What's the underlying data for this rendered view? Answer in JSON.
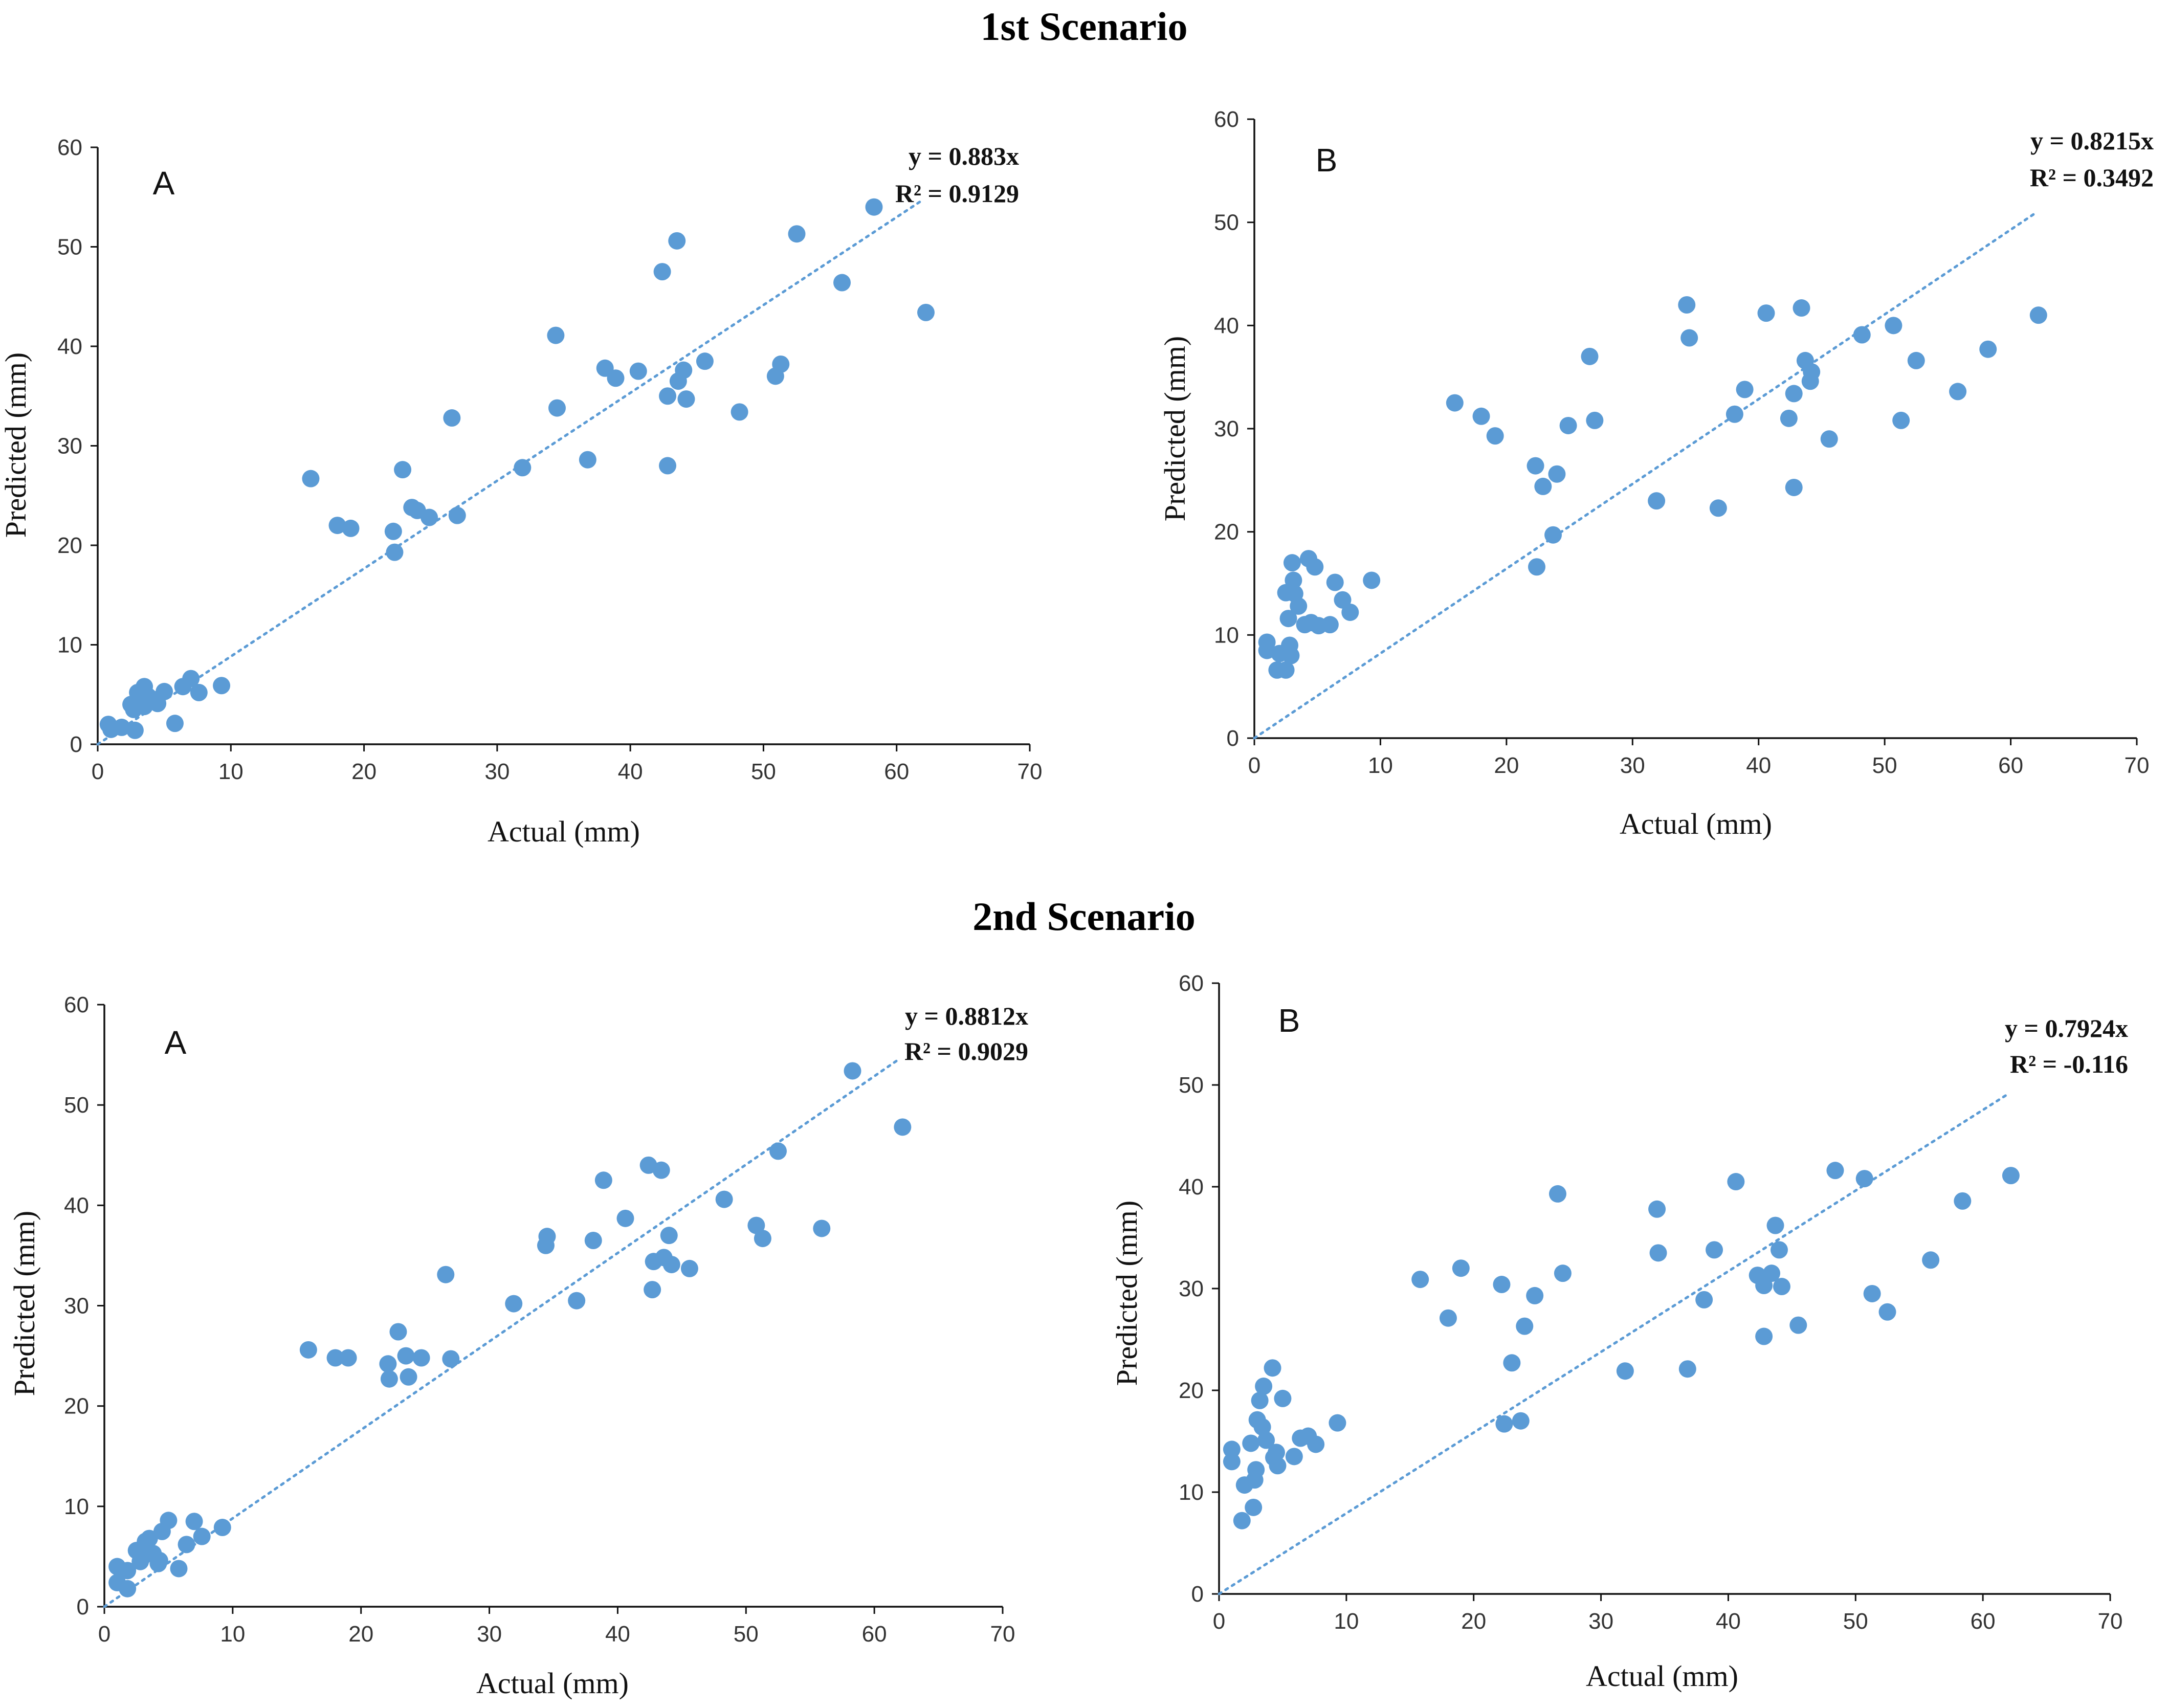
{
  "scenarios": [
    {
      "title": "1st Scenario"
    },
    {
      "title": "2nd Scenario"
    }
  ],
  "chart_data": [
    {
      "type": "scatter",
      "panel": "A",
      "scenario": "1st Scenario",
      "xlabel": "Actual (mm)",
      "ylabel": "Predicted (mm)",
      "xlim": [
        0,
        70
      ],
      "ylim": [
        0,
        60
      ],
      "xticks": [
        0,
        10,
        20,
        30,
        40,
        50,
        60,
        70
      ],
      "yticks": [
        0,
        10,
        20,
        30,
        40,
        50,
        60
      ],
      "trendline": {
        "equation": "y = 0.883x",
        "r2": "R² = 0.9129",
        "slope": 0.883,
        "x_end": 62
      },
      "color": "#5b9bd5",
      "points": [
        [
          0.8,
          2
        ],
        [
          1,
          1.5
        ],
        [
          1.8,
          1.7
        ],
        [
          2.8,
          1.4
        ],
        [
          2.5,
          4
        ],
        [
          2.7,
          3.5
        ],
        [
          3,
          5.2
        ],
        [
          3.2,
          4.3
        ],
        [
          3.5,
          5.8
        ],
        [
          3.8,
          4.8
        ],
        [
          3.5,
          3.8
        ],
        [
          4.2,
          4.5
        ],
        [
          4.5,
          4.1
        ],
        [
          5,
          5.3
        ],
        [
          5.8,
          2.1
        ],
        [
          6.4,
          5.8
        ],
        [
          7,
          6.6
        ],
        [
          7.6,
          5.2
        ],
        [
          9.3,
          5.9
        ],
        [
          16,
          26.7
        ],
        [
          18,
          22
        ],
        [
          19,
          21.7
        ],
        [
          22.2,
          21.4
        ],
        [
          22.3,
          19.3
        ],
        [
          22.9,
          27.6
        ],
        [
          23.6,
          23.8
        ],
        [
          24,
          23.5
        ],
        [
          24.9,
          22.8
        ],
        [
          26.6,
          32.8
        ],
        [
          27,
          23
        ],
        [
          31.9,
          27.8
        ],
        [
          34.4,
          41.1
        ],
        [
          34.5,
          33.8
        ],
        [
          36.8,
          28.6
        ],
        [
          38.1,
          37.8
        ],
        [
          38.9,
          36.8
        ],
        [
          40.6,
          37.5
        ],
        [
          42.4,
          47.5
        ],
        [
          42.8,
          35
        ],
        [
          42.8,
          28
        ],
        [
          43.5,
          50.6
        ],
        [
          43.6,
          36.5
        ],
        [
          44,
          37.6
        ],
        [
          44.2,
          34.7
        ],
        [
          45.6,
          38.5
        ],
        [
          48.2,
          33.4
        ],
        [
          50.9,
          37
        ],
        [
          51.3,
          38.2
        ],
        [
          52.5,
          51.3
        ],
        [
          55.9,
          46.4
        ],
        [
          58.3,
          54
        ],
        [
          62.2,
          43.4
        ]
      ]
    },
    {
      "type": "scatter",
      "panel": "B",
      "scenario": "1st Scenario",
      "xlabel": "Actual (mm)",
      "ylabel": "Predicted (mm)",
      "xlim": [
        0,
        70
      ],
      "ylim": [
        0,
        60
      ],
      "xticks": [
        0,
        10,
        20,
        30,
        40,
        50,
        60,
        70
      ],
      "yticks": [
        0,
        10,
        20,
        30,
        40,
        50,
        60
      ],
      "trendline": {
        "equation": "y = 0.8215x",
        "r2": "R² = 0.3492",
        "slope": 0.8215,
        "x_end": 62
      },
      "color": "#5b9bd5",
      "points": [
        [
          1,
          9.3
        ],
        [
          1,
          8.5
        ],
        [
          1.8,
          6.6
        ],
        [
          2,
          8.2
        ],
        [
          2.5,
          6.6
        ],
        [
          2.5,
          14.1
        ],
        [
          2.7,
          11.6
        ],
        [
          2.8,
          9
        ],
        [
          2.9,
          8
        ],
        [
          3,
          17
        ],
        [
          3.1,
          15.3
        ],
        [
          3.2,
          14
        ],
        [
          3.5,
          12.8
        ],
        [
          4,
          11
        ],
        [
          4.3,
          17.4
        ],
        [
          4.5,
          11.2
        ],
        [
          4.8,
          16.6
        ],
        [
          5.1,
          10.9
        ],
        [
          6,
          11
        ],
        [
          6.4,
          15.1
        ],
        [
          7,
          13.4
        ],
        [
          7.6,
          12.2
        ],
        [
          9.3,
          15.3
        ],
        [
          15.9,
          32.5
        ],
        [
          18,
          31.2
        ],
        [
          19.1,
          29.3
        ],
        [
          22.3,
          26.4
        ],
        [
          22.4,
          16.6
        ],
        [
          22.9,
          24.4
        ],
        [
          23.7,
          19.7
        ],
        [
          24,
          25.6
        ],
        [
          24.9,
          30.3
        ],
        [
          26.6,
          37
        ],
        [
          27,
          30.8
        ],
        [
          31.9,
          23
        ],
        [
          34.3,
          42
        ],
        [
          34.5,
          38.8
        ],
        [
          36.8,
          22.3
        ],
        [
          38.1,
          31.4
        ],
        [
          38.9,
          33.8
        ],
        [
          40.6,
          41.2
        ],
        [
          42.4,
          31
        ],
        [
          42.8,
          24.3
        ],
        [
          42.8,
          33.4
        ],
        [
          43.4,
          41.7
        ],
        [
          43.7,
          36.6
        ],
        [
          44.1,
          34.6
        ],
        [
          44.2,
          35.5
        ],
        [
          45.6,
          29
        ],
        [
          48.2,
          39.1
        ],
        [
          50.7,
          40
        ],
        [
          51.3,
          30.8
        ],
        [
          52.5,
          36.6
        ],
        [
          55.8,
          33.6
        ],
        [
          58.2,
          37.7
        ],
        [
          62.2,
          41
        ]
      ]
    },
    {
      "type": "scatter",
      "panel": "A",
      "scenario": "2nd Scenario",
      "xlabel": "Actual (mm)",
      "ylabel": "Predicted (mm)",
      "xlim": [
        0,
        70
      ],
      "ylim": [
        0,
        60
      ],
      "xticks": [
        0,
        10,
        20,
        30,
        40,
        50,
        60,
        70
      ],
      "yticks": [
        0,
        10,
        20,
        30,
        40,
        50,
        60
      ],
      "trendline": {
        "equation": "y = 0.8812x",
        "r2": "R² = 0.9029",
        "slope": 0.8812,
        "x_end": 62
      },
      "color": "#5b9bd5",
      "points": [
        [
          1,
          4
        ],
        [
          1,
          2.4
        ],
        [
          1.8,
          3.6
        ],
        [
          1.8,
          1.8
        ],
        [
          2.5,
          5.6
        ],
        [
          2.8,
          4.5
        ],
        [
          3,
          5
        ],
        [
          3.2,
          6.5
        ],
        [
          3.5,
          6.8
        ],
        [
          3.8,
          5.3
        ],
        [
          4.2,
          4.3
        ],
        [
          4.3,
          4.6
        ],
        [
          4.5,
          7.5
        ],
        [
          5,
          8.6
        ],
        [
          5.8,
          3.8
        ],
        [
          6.4,
          6.2
        ],
        [
          7,
          8.5
        ],
        [
          7.6,
          7
        ],
        [
          9.2,
          7.9
        ],
        [
          15.9,
          25.6
        ],
        [
          18,
          24.8
        ],
        [
          19,
          24.8
        ],
        [
          22.1,
          24.2
        ],
        [
          22.2,
          22.7
        ],
        [
          22.9,
          27.4
        ],
        [
          23.5,
          25
        ],
        [
          23.7,
          22.9
        ],
        [
          24.7,
          24.8
        ],
        [
          26.6,
          33.1
        ],
        [
          27,
          24.7
        ],
        [
          31.9,
          30.2
        ],
        [
          34.4,
          36
        ],
        [
          34.5,
          36.9
        ],
        [
          36.8,
          30.5
        ],
        [
          38.1,
          36.5
        ],
        [
          38.9,
          42.5
        ],
        [
          40.6,
          38.7
        ],
        [
          42.4,
          44
        ],
        [
          42.7,
          31.6
        ],
        [
          42.8,
          34.4
        ],
        [
          43.4,
          43.5
        ],
        [
          43.6,
          34.8
        ],
        [
          44,
          37
        ],
        [
          44.2,
          34.1
        ],
        [
          45.6,
          33.7
        ],
        [
          48.3,
          40.6
        ],
        [
          50.8,
          38
        ],
        [
          51.3,
          36.7
        ],
        [
          52.5,
          45.4
        ],
        [
          55.9,
          37.7
        ],
        [
          58.3,
          53.4
        ],
        [
          62.2,
          47.8
        ]
      ]
    },
    {
      "type": "scatter",
      "panel": "B",
      "scenario": "2nd Scenario",
      "xlabel": "Actual (mm)",
      "ylabel": "Predicted (mm)",
      "xlim": [
        0,
        70
      ],
      "ylim": [
        0,
        60
      ],
      "xticks": [
        0,
        10,
        20,
        30,
        40,
        50,
        60,
        70
      ],
      "yticks": [
        0,
        10,
        20,
        30,
        40,
        50,
        60
      ],
      "trendline": {
        "equation": "y = 0.7924x",
        "r2": "R² = -0.116",
        "slope": 0.7924,
        "x_end": 62
      },
      "color": "#5b9bd5",
      "points": [
        [
          1,
          14.2
        ],
        [
          1,
          13
        ],
        [
          1.8,
          7.2
        ],
        [
          2,
          10.7
        ],
        [
          2.5,
          14.8
        ],
        [
          2.7,
          8.5
        ],
        [
          2.8,
          11.2
        ],
        [
          2.9,
          12.2
        ],
        [
          3,
          17.1
        ],
        [
          3.2,
          19
        ],
        [
          3.4,
          16.4
        ],
        [
          3.5,
          20.4
        ],
        [
          3.7,
          15.1
        ],
        [
          4.2,
          22.2
        ],
        [
          4.3,
          13.4
        ],
        [
          4.5,
          13.9
        ],
        [
          4.6,
          12.6
        ],
        [
          5,
          19.2
        ],
        [
          5.9,
          13.5
        ],
        [
          6.4,
          15.3
        ],
        [
          7,
          15.5
        ],
        [
          7.6,
          14.7
        ],
        [
          9.3,
          16.8
        ],
        [
          15.8,
          30.9
        ],
        [
          18,
          27.1
        ],
        [
          19,
          32
        ],
        [
          22.2,
          30.4
        ],
        [
          22.4,
          16.7
        ],
        [
          23,
          22.7
        ],
        [
          23.7,
          17
        ],
        [
          24,
          26.3
        ],
        [
          24.8,
          29.3
        ],
        [
          26.6,
          39.3
        ],
        [
          27,
          31.5
        ],
        [
          31.9,
          21.9
        ],
        [
          34.4,
          37.8
        ],
        [
          34.5,
          33.5
        ],
        [
          36.8,
          22.1
        ],
        [
          38.1,
          28.9
        ],
        [
          38.9,
          33.8
        ],
        [
          40.6,
          40.5
        ],
        [
          42.3,
          31.3
        ],
        [
          42.8,
          25.3
        ],
        [
          42.8,
          30.3
        ],
        [
          43.4,
          31.5
        ],
        [
          43.7,
          36.2
        ],
        [
          44,
          33.8
        ],
        [
          44.2,
          30.2
        ],
        [
          45.5,
          26.4
        ],
        [
          48.4,
          41.6
        ],
        [
          50.7,
          40.8
        ],
        [
          51.3,
          29.5
        ],
        [
          52.5,
          27.7
        ],
        [
          55.9,
          32.8
        ],
        [
          58.4,
          38.6
        ],
        [
          62.2,
          41.1
        ]
      ]
    }
  ]
}
